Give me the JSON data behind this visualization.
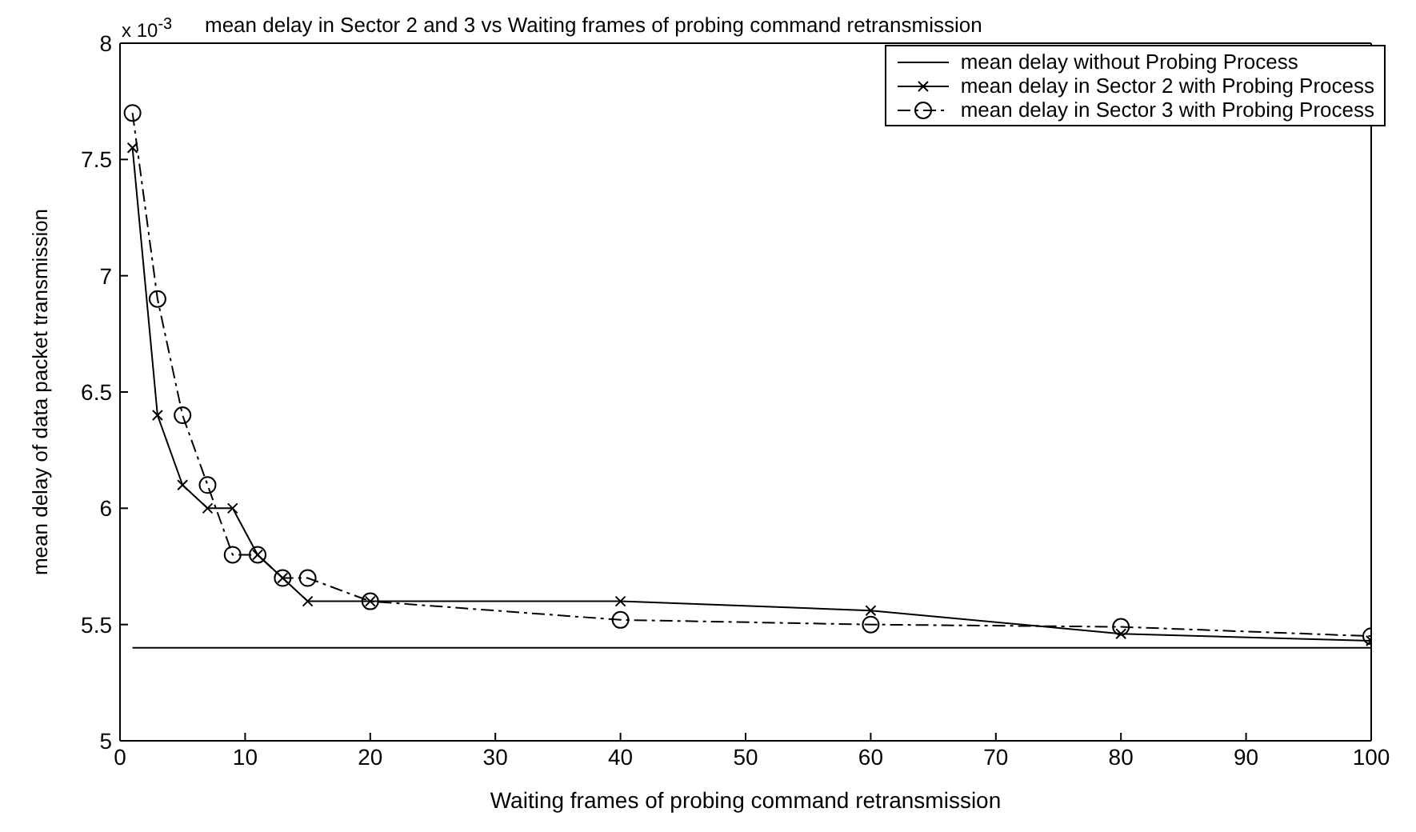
{
  "chart_data": {
    "type": "line",
    "title": "mean delay in Sector 2 and 3 vs Waiting frames of probing command retransmission",
    "xlabel": "Waiting frames of probing command retransmission",
    "ylabel": "mean delay of data packet transmission",
    "annotations": [
      "x 10$^{-3}$"
    ],
    "xlim": [
      0,
      100
    ],
    "xticks": [
      0,
      10,
      20,
      30,
      40,
      50,
      60,
      70,
      80,
      90,
      100
    ],
    "ylim": [
      5,
      8
    ],
    "yticks": [
      5,
      5.5,
      6,
      6.5,
      7,
      7.5,
      8
    ],
    "legend": "top right",
    "series": [
      {
        "name": "mean delay without Probing Process",
        "color": "#000000",
        "marker": "none",
        "line_style": "solid",
        "x": [
          1,
          100
        ],
        "values": [
          5.4,
          5.4
        ]
      },
      {
        "name": "mean delay in Sector 2 with Probing Process",
        "color": "#000000",
        "marker": "cross",
        "line_style": "solid",
        "x": [
          1,
          3,
          5,
          7,
          9,
          11,
          13,
          15,
          20,
          40,
          60,
          80,
          100
        ],
        "values": [
          7.55,
          6.4,
          6.1,
          6.0,
          6.0,
          5.8,
          5.7,
          5.6,
          5.6,
          5.6,
          5.56,
          5.46,
          5.43
        ]
      },
      {
        "name": "mean delay in Sector 3 with Probing Process",
        "color": "#000000",
        "marker": "circle",
        "line_style": "dashed",
        "x": [
          1,
          3,
          5,
          7,
          9,
          11,
          13,
          15,
          20,
          40,
          60,
          80,
          100
        ],
        "values": [
          7.7,
          6.9,
          6.4,
          6.1,
          5.8,
          5.8,
          5.7,
          5.7,
          5.6,
          5.52,
          5.5,
          5.49,
          5.45
        ]
      }
    ]
  }
}
